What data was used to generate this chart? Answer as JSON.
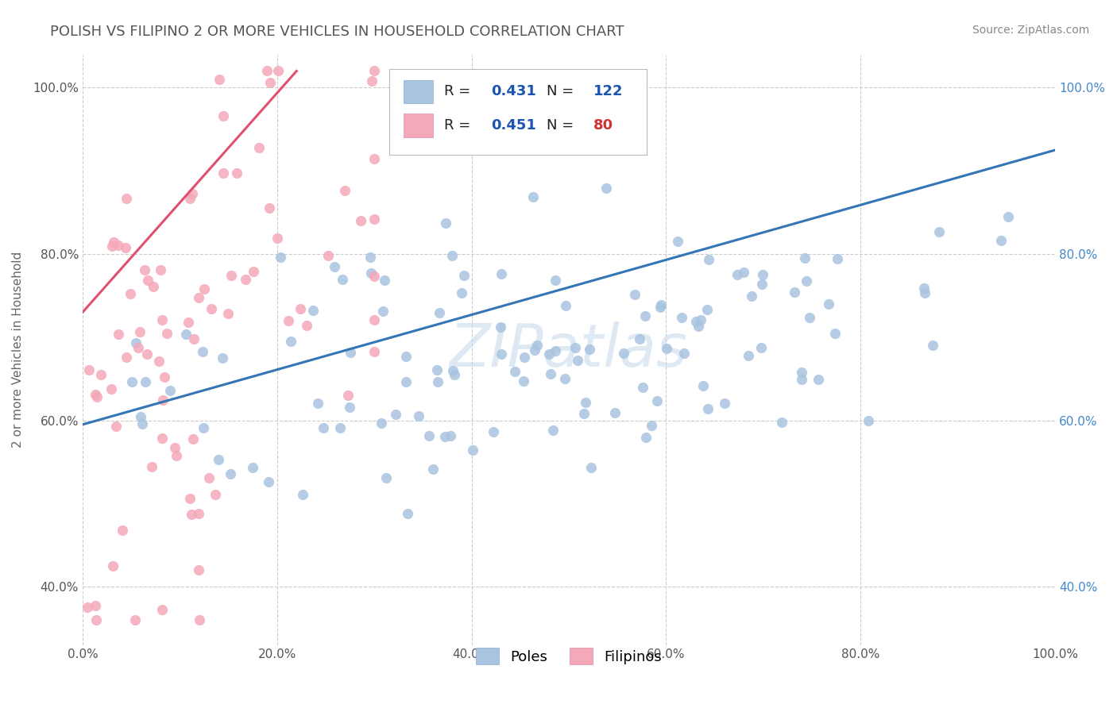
{
  "title": "POLISH VS FILIPINO 2 OR MORE VEHICLES IN HOUSEHOLD CORRELATION CHART",
  "source": "Source: ZipAtlas.com",
  "ylabel": "2 or more Vehicles in Household",
  "watermark": "ZIPatlas",
  "legend_blue_label": "Poles",
  "legend_pink_label": "Filipinos",
  "r_blue": 0.431,
  "n_blue": 122,
  "r_pink": 0.451,
  "n_pink": 80,
  "blue_color": "#a8c4e0",
  "pink_color": "#f4a8b8",
  "blue_line_color": "#3375b5",
  "pink_line_color": "#e05070",
  "title_color": "#555555",
  "r_label_color": "#1a56b0",
  "n_blue_color": "#1a56b0",
  "n_pink_color": "#cc3333",
  "right_tick_color": "#4488cc",
  "xmin": 0.0,
  "xmax": 1.0,
  "ymin": 0.33,
  "ymax": 1.04,
  "blue_line_x0": 0.0,
  "blue_line_y0": 0.595,
  "blue_line_x1": 1.0,
  "blue_line_y1": 0.925,
  "pink_line_x0": 0.0,
  "pink_line_y0": 0.73,
  "pink_line_x1": 0.22,
  "pink_line_y1": 1.02
}
